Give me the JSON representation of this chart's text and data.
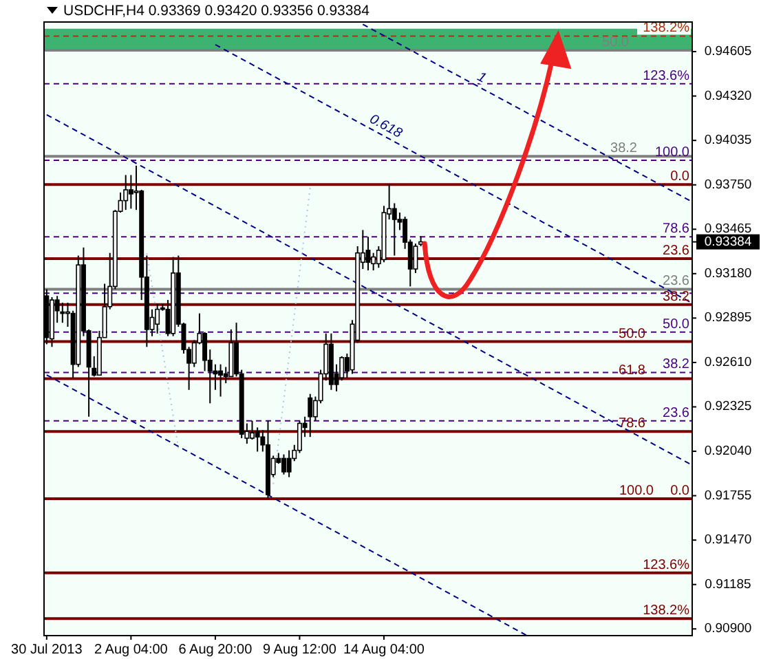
{
  "chart_data": {
    "type": "candlestick",
    "title": "USDCHF,H4  0.93369 0.93420 0.93356 0.93384",
    "categories": [
      "30 Jul 2013",
      null,
      null,
      null,
      null,
      null,
      null,
      null,
      null,
      null,
      null,
      null,
      null,
      null,
      null,
      null,
      "2 Aug 04:00",
      null,
      null,
      null,
      null,
      null,
      null,
      null,
      null,
      null,
      null,
      null,
      null,
      null,
      null,
      null,
      "6 Aug 20:00",
      null,
      null,
      null,
      null,
      null,
      null,
      null,
      null,
      null,
      null,
      null,
      null,
      null,
      null,
      null,
      "9 Aug 12:00",
      null,
      null,
      null,
      null,
      null,
      null,
      null,
      null,
      null,
      null,
      null,
      null,
      null,
      null,
      null,
      "14 Aug 04:00",
      null,
      null,
      null,
      null,
      null,
      null,
      null,
      null,
      null,
      null,
      null,
      null,
      null,
      null,
      null,
      null,
      null,
      null,
      null,
      null,
      null,
      null,
      null,
      null,
      null,
      null,
      null,
      null,
      null,
      null,
      null,
      null,
      null,
      null,
      null,
      null,
      null,
      null,
      null,
      null,
      null,
      null,
      null,
      null,
      null,
      null,
      null,
      null,
      null,
      null,
      null,
      null,
      null,
      null,
      null,
      null,
      null,
      null
    ],
    "ohlc": [
      [
        0.93037,
        0.9308,
        0.92727,
        0.9277
      ],
      [
        0.92762,
        0.93029,
        0.9271,
        0.93011
      ],
      [
        0.93011,
        0.93037,
        0.92865,
        0.92942
      ],
      [
        0.92934,
        0.92994,
        0.92865,
        0.92925
      ],
      [
        0.92925,
        0.92994,
        0.92839,
        0.92934
      ],
      [
        0.92925,
        0.92942,
        0.92512,
        0.92598
      ],
      [
        0.92598,
        0.93296,
        0.92581,
        0.93236
      ],
      [
        0.93236,
        0.93348,
        0.92779,
        0.92813
      ],
      [
        0.92813,
        0.92822,
        0.92262,
        0.92581
      ],
      [
        0.92572,
        0.9265,
        0.9252,
        0.92529
      ],
      [
        0.92529,
        0.92813,
        0.92529,
        0.9277
      ],
      [
        0.9277,
        0.93115,
        0.9277,
        0.92968
      ],
      [
        0.92968,
        0.93313,
        0.92951,
        0.93098
      ],
      [
        0.93098,
        0.93589,
        0.9308,
        0.9358
      ],
      [
        0.9358,
        0.93701,
        0.93572,
        0.93649
      ],
      [
        0.93649,
        0.93813,
        0.93589,
        0.93718
      ],
      [
        0.93718,
        0.93813,
        0.93597,
        0.93692
      ],
      [
        0.93701,
        0.93873,
        0.93589,
        0.9371
      ],
      [
        0.9371,
        0.93718,
        0.93011,
        0.93158
      ],
      [
        0.93158,
        0.93296,
        0.9271,
        0.92822
      ],
      [
        0.92822,
        0.92951,
        0.92779,
        0.92899
      ],
      [
        0.92856,
        0.92986,
        0.92796,
        0.92951
      ],
      [
        0.9296,
        0.92986,
        0.92942,
        0.92951
      ],
      [
        0.92951,
        0.93011,
        0.92779,
        0.92796
      ],
      [
        0.92796,
        0.93287,
        0.92779,
        0.93184
      ],
      [
        0.93184,
        0.93296,
        0.92839,
        0.92856
      ],
      [
        0.92856,
        0.92865,
        0.92667,
        0.92693
      ],
      [
        0.92693,
        0.9271,
        0.92434,
        0.92606
      ],
      [
        0.92606,
        0.92753,
        0.92581,
        0.92736
      ],
      [
        0.92736,
        0.92925,
        0.92727,
        0.92796
      ],
      [
        0.92796,
        0.92805,
        0.92555,
        0.92624
      ],
      [
        0.92624,
        0.92693,
        0.92348,
        0.92555
      ],
      [
        0.92555,
        0.92598,
        0.92434,
        0.92537
      ],
      [
        0.92555,
        0.92598,
        0.92391,
        0.92529
      ],
      [
        0.92537,
        0.92581,
        0.92477,
        0.9252
      ],
      [
        0.9252,
        0.92822,
        0.9252,
        0.92736
      ],
      [
        0.92736,
        0.92865,
        0.9252,
        0.92537
      ],
      [
        0.92537,
        0.92563,
        0.92124,
        0.9215
      ],
      [
        0.92124,
        0.92219,
        0.92089,
        0.92167
      ],
      [
        0.92124,
        0.92236,
        0.92115,
        0.92158
      ],
      [
        0.92167,
        0.92193,
        0.92038,
        0.92132
      ],
      [
        0.92132,
        0.92176,
        0.92038,
        0.92081
      ],
      [
        0.92081,
        0.92236,
        0.91736,
        0.91762
      ],
      [
        0.91891,
        0.92012,
        0.91874,
        0.91994
      ],
      [
        0.91994,
        0.92029,
        0.9196,
        0.91969
      ],
      [
        0.91994,
        0.9202,
        0.91891,
        0.91908
      ],
      [
        0.91994,
        0.92046,
        0.91874,
        0.91908
      ],
      [
        0.91994,
        0.92081,
        0.91977,
        0.92046
      ],
      [
        0.92046,
        0.92236,
        0.92029,
        0.92219
      ],
      [
        0.92219,
        0.92262,
        0.92132,
        0.92193
      ],
      [
        0.92382,
        0.92408,
        0.92132,
        0.92262
      ],
      [
        0.92262,
        0.92391,
        0.92236,
        0.92365
      ],
      [
        0.92365,
        0.92563,
        0.92348,
        0.92537
      ],
      [
        0.92537,
        0.92796,
        0.92494,
        0.92727
      ],
      [
        0.92727,
        0.92796,
        0.92434,
        0.92469
      ],
      [
        0.92537,
        0.92598,
        0.92425,
        0.92469
      ],
      [
        0.92512,
        0.9265,
        0.92494,
        0.92641
      ],
      [
        0.92641,
        0.92667,
        0.92512,
        0.92555
      ],
      [
        0.92563,
        0.92882,
        0.92537,
        0.92856
      ],
      [
        0.92753,
        0.93356,
        0.92736,
        0.93313
      ],
      [
        0.93253,
        0.9346,
        0.9321,
        0.93313
      ],
      [
        0.9333,
        0.93416,
        0.93201,
        0.93253
      ],
      [
        0.93244,
        0.93313,
        0.93201,
        0.93287
      ],
      [
        0.93244,
        0.93356,
        0.93218,
        0.9333
      ],
      [
        0.9327,
        0.93615,
        0.93253,
        0.93572
      ],
      [
        0.93563,
        0.93753,
        0.93528,
        0.93597
      ],
      [
        0.93597,
        0.93632,
        0.93296,
        0.93528
      ],
      [
        0.93528,
        0.93572,
        0.9346,
        0.93511
      ],
      [
        0.93528,
        0.93546,
        0.93339,
        0.93382
      ],
      [
        0.93382,
        0.93399,
        0.93098,
        0.9321
      ],
      [
        0.9321,
        0.93373,
        0.93184,
        0.93356
      ],
      [
        0.93369,
        0.9342,
        0.93356,
        0.93384
      ],
      null,
      null,
      null,
      null,
      null,
      null,
      null,
      null,
      null,
      null,
      null,
      null,
      null,
      null,
      null,
      null,
      null,
      null,
      null,
      null,
      null,
      null,
      null,
      null,
      null,
      null,
      null,
      null,
      null,
      null,
      null,
      null,
      null,
      null,
      null,
      null,
      null,
      null,
      null,
      null,
      null,
      null,
      null,
      null,
      null,
      null,
      null,
      null,
      null,
      null,
      null
    ],
    "ylim": [
      0.90857,
      0.94795
    ],
    "yticks": [
      0.94605,
      {
        "value": 0.9432,
        "label": "0.94320"
      },
      0.94035,
      {
        "value": 0.9375,
        "label": "0.93750"
      },
      0.93465,
      0.93384,
      {
        "value": 0.9318,
        "label": "0.93180"
      },
      0.92895,
      {
        "value": 0.9261,
        "label": "0.92610"
      },
      0.92325,
      {
        "value": 0.9204,
        "label": "0.92040"
      },
      0.91755,
      {
        "value": 0.9147,
        "label": "0.91470"
      },
      0.91185,
      {
        "value": 0.909,
        "label": "0.90900"
      }
    ],
    "series": [
      {
        "type": "line",
        "color": "#000080",
        "line_style": "dashed",
        "values": [
          0.942,
          null,
          null,
          null,
          null,
          null,
          null,
          null,
          null,
          null,
          null,
          null,
          null,
          null,
          null,
          null,
          null,
          null,
          null,
          null,
          null,
          null,
          null,
          null,
          null,
          null,
          null,
          null,
          null,
          null,
          null,
          null,
          null,
          null,
          null,
          null,
          null,
          null,
          null,
          null,
          null,
          null,
          null,
          null,
          null,
          null,
          null,
          null,
          null,
          null,
          null,
          null,
          null,
          null,
          null,
          null,
          null,
          null,
          null,
          null,
          null,
          null,
          null,
          null,
          null,
          null,
          null,
          null,
          null,
          null,
          null,
          null,
          null,
          null,
          null,
          null,
          null,
          null,
          null,
          null,
          null,
          null,
          null,
          null,
          null,
          null,
          null,
          null,
          null,
          null,
          null,
          null,
          null,
          null,
          null,
          null,
          null,
          null,
          null,
          null,
          null,
          null,
          null,
          null,
          null,
          null,
          null,
          null,
          null,
          null,
          null,
          null,
          null,
          null,
          null,
          null,
          null,
          null,
          null,
          null,
          null,
          null,
          0.9196
        ]
      },
      {
        "type": "line",
        "color": "#000080",
        "line_style": "dashed",
        "values": [
          0.9253,
          null,
          null,
          null,
          null,
          null,
          null,
          null,
          null,
          null,
          null,
          null,
          null,
          null,
          null,
          null,
          null,
          null,
          null,
          null,
          null,
          null,
          null,
          null,
          null,
          null,
          null,
          null,
          null,
          null,
          null,
          null,
          null,
          null,
          null,
          null,
          null,
          null,
          null,
          null,
          null,
          null,
          null,
          null,
          null,
          null,
          null,
          null,
          null,
          null,
          null,
          null,
          null,
          null,
          null,
          null,
          null,
          null,
          null,
          null,
          null,
          null,
          null,
          null,
          null,
          null,
          null,
          null,
          null,
          null,
          null,
          null,
          null,
          null,
          null,
          null,
          null,
          null,
          null,
          null,
          null,
          null,
          null,
          null,
          null,
          null,
          null,
          null,
          null,
          null,
          null,
          0.9086,
          null,
          null,
          null,
          null,
          null,
          null,
          null,
          null,
          null,
          null,
          null,
          null,
          null,
          null,
          null,
          null,
          null,
          null,
          null,
          null,
          null,
          null,
          null,
          null,
          null,
          null,
          null,
          null,
          null,
          null,
          null
        ]
      },
      {
        "type": "line",
        "name": "0.618",
        "color": "#000080",
        "line_style": "dashed",
        "values": [
          null,
          null,
          null,
          null,
          null,
          null,
          null,
          null,
          null,
          null,
          null,
          null,
          null,
          null,
          null,
          null,
          null,
          null,
          null,
          null,
          null,
          null,
          null,
          null,
          null,
          null,
          null,
          null,
          null,
          null,
          null,
          null,
          0.9465,
          null,
          null,
          null,
          null,
          null,
          null,
          null,
          null,
          null,
          null,
          null,
          null,
          null,
          null,
          null,
          null,
          null,
          null,
          null,
          null,
          null,
          null,
          null,
          null,
          null,
          null,
          null,
          null,
          null,
          null,
          null,
          null,
          null,
          null,
          null,
          null,
          null,
          null,
          null,
          null,
          null,
          null,
          null,
          null,
          null,
          null,
          null,
          null,
          null,
          null,
          null,
          null,
          null,
          null,
          null,
          null,
          null,
          null,
          null,
          null,
          null,
          null,
          null,
          null,
          null,
          null,
          null,
          null,
          null,
          null,
          null,
          null,
          null,
          null,
          null,
          null,
          null,
          null,
          null,
          null,
          null,
          null,
          null,
          null,
          null,
          null,
          null,
          null,
          null,
          0.93
        ]
      },
      {
        "type": "line",
        "name": "1",
        "color": "#000080",
        "line_style": "dashed",
        "values": [
          null,
          null,
          null,
          null,
          null,
          null,
          null,
          null,
          null,
          null,
          null,
          null,
          null,
          null,
          null,
          null,
          null,
          null,
          null,
          null,
          null,
          null,
          null,
          null,
          null,
          null,
          null,
          null,
          null,
          null,
          null,
          null,
          null,
          null,
          null,
          null,
          null,
          null,
          null,
          null,
          null,
          null,
          null,
          null,
          null,
          null,
          null,
          null,
          null,
          null,
          null,
          null,
          null,
          null,
          null,
          null,
          null,
          null,
          null,
          null,
          0.9478,
          null,
          null,
          null,
          null,
          null,
          null,
          null,
          null,
          null,
          null,
          null,
          null,
          null,
          null,
          null,
          null,
          null,
          null,
          null,
          null,
          null,
          null,
          null,
          null,
          null,
          null,
          null,
          null,
          null,
          null,
          null,
          null,
          null,
          null,
          null,
          null,
          null,
          null,
          null,
          null,
          null,
          null,
          null,
          null,
          null,
          null,
          null,
          null,
          null,
          null,
          null,
          null,
          null,
          null,
          null,
          null,
          null,
          null,
          null,
          null,
          null,
          0.9365
        ]
      },
      {
        "type": "line",
        "color": "#b0c4de",
        "line_style": "dotted",
        "values": [
          null,
          null,
          null,
          null,
          null,
          null,
          null,
          null,
          null,
          null,
          null,
          null,
          null,
          null,
          null,
          null,
          null,
          null,
          null,
          0.9331,
          null,
          null,
          null,
          null,
          null,
          0.9206,
          null,
          null,
          null,
          null,
          null,
          null,
          null,
          null,
          null,
          null,
          null,
          null,
          null,
          null,
          null,
          null,
          null,
          null,
          null,
          null,
          null,
          null,
          null,
          null,
          null,
          null,
          null,
          null,
          null,
          null,
          null,
          null,
          null,
          null,
          null,
          null,
          null,
          null,
          null,
          null,
          null,
          null,
          null,
          null,
          null,
          null,
          null,
          null,
          null,
          null,
          null,
          null,
          null,
          null,
          null,
          null,
          null,
          null,
          null,
          null,
          null,
          null,
          null,
          null,
          null,
          null,
          null,
          null,
          null,
          null,
          null,
          null,
          null,
          null,
          null,
          null,
          null,
          null,
          null,
          null,
          null,
          null,
          null,
          null,
          null,
          null,
          null,
          null,
          null,
          null,
          null,
          null,
          null,
          null,
          null,
          null,
          null
        ]
      },
      {
        "type": "line",
        "color": "#b0c4de",
        "line_style": "dotted",
        "values": [
          null,
          null,
          null,
          null,
          null,
          null,
          null,
          null,
          null,
          null,
          null,
          null,
          null,
          null,
          null,
          null,
          null,
          null,
          null,
          null,
          null,
          null,
          null,
          null,
          null,
          null,
          null,
          null,
          null,
          null,
          null,
          null,
          null,
          null,
          null,
          null,
          null,
          null,
          null,
          null,
          null,
          null,
          null,
          0.9183,
          null,
          null,
          null,
          null,
          null,
          null,
          0.9373,
          null,
          null,
          null,
          null,
          null,
          null,
          null,
          null,
          null,
          null,
          null,
          null,
          null,
          null,
          null,
          null,
          null,
          null,
          null,
          null,
          null,
          null,
          null,
          null,
          null,
          null,
          null,
          null,
          null,
          null,
          null,
          null,
          null,
          null,
          null,
          null,
          null,
          null,
          null,
          null,
          null,
          null,
          null,
          null,
          null,
          null,
          null,
          null,
          null,
          null,
          null,
          null,
          null,
          null,
          null,
          null,
          null,
          null,
          null,
          null,
          null,
          null,
          null,
          null,
          null,
          null,
          null,
          null,
          null,
          null,
          null,
          null
        ]
      }
    ],
    "bands": [
      {
        "axis": "y",
        "from": 0.94614,
        "to": 0.94752,
        "color": "#3cb371"
      }
    ],
    "ref_lines": [
      {
        "axis": "y",
        "value": 0.94705,
        "color": "#b03010",
        "line_style": "dashed"
      },
      {
        "axis": "y",
        "value": 0.94399,
        "color": "#4b0082",
        "line_style": "dashed"
      },
      {
        "axis": "y",
        "value": 0.93908,
        "color": "#4b0082",
        "line_style": "dashed"
      },
      {
        "axis": "y",
        "value": 0.93416,
        "color": "#4b0082",
        "line_style": "dashed"
      },
      {
        "axis": "y",
        "value": 0.93054,
        "color": "#4b0082",
        "line_style": "dashed"
      },
      {
        "axis": "y",
        "value": 0.92805,
        "color": "#4b0082",
        "line_style": "dashed"
      },
      {
        "axis": "y",
        "value": 0.92546,
        "color": "#4b0082",
        "line_style": "dashed"
      },
      {
        "axis": "y",
        "value": 0.92236,
        "color": "#4b0082",
        "line_style": "dashed"
      },
      {
        "axis": "y",
        "value": 0.94614,
        "color": "#808080",
        "line_style": "solid"
      },
      {
        "axis": "y",
        "value": 0.93933,
        "color": "#808080",
        "line_style": "solid"
      },
      {
        "axis": "y",
        "value": 0.9308,
        "color": "#808080",
        "line_style": "solid"
      },
      {
        "axis": "y",
        "value": 0.93752,
        "color": "#800000",
        "line_style": "solid"
      },
      {
        "axis": "y",
        "value": 0.93276,
        "color": "#800000",
        "line_style": "solid"
      },
      {
        "axis": "y",
        "value": 0.92982,
        "color": "#800000",
        "line_style": "solid"
      },
      {
        "axis": "y",
        "value": 0.92744,
        "color": "#800000",
        "line_style": "solid"
      },
      {
        "axis": "y",
        "value": 0.92506,
        "color": "#800000",
        "line_style": "solid"
      },
      {
        "axis": "y",
        "value": 0.92167,
        "color": "#800000",
        "line_style": "solid"
      },
      {
        "axis": "y",
        "value": 0.91736,
        "color": "#800000",
        "line_style": "solid"
      },
      {
        "axis": "y",
        "value": 0.9126,
        "color": "#800000",
        "line_style": "solid"
      },
      {
        "axis": "y",
        "value": 0.90966,
        "color": "#800000",
        "line_style": "solid"
      }
    ],
    "annotations": [
      {
        "text": "138.2%",
        "y": 0.94705
      },
      {
        "text": "123.6%",
        "y": 0.94399
      },
      {
        "text": "100.0",
        "y": 0.93908
      },
      {
        "text": "78.6",
        "y": 0.93416
      },
      {
        "text": "50.0",
        "y": 0.92805
      },
      {
        "text": "38.2",
        "y": 0.92546
      },
      {
        "text": "23.6",
        "y": 0.92236
      },
      {
        "text": "50.0",
        "y": 0.94614
      },
      {
        "text": "38.2",
        "y": 0.93933
      },
      {
        "text": "23.6",
        "y": 0.9308
      },
      {
        "text": "0.0",
        "y": 0.91736
      },
      {
        "text": "0.0",
        "y": 0.93752
      },
      {
        "text": "23.6",
        "y": 0.93276
      },
      {
        "text": "38.2",
        "y": 0.92982
      },
      {
        "text": "50.0",
        "y": 0.92744
      },
      {
        "text": "61.8",
        "y": 0.92506
      },
      {
        "text": "78.6",
        "y": 0.92167
      },
      {
        "text": "100.0",
        "y": 0.91736
      },
      {
        "text": "123.6%",
        "y": 0.9126
      },
      {
        "text": "138.2%",
        "y": 0.90966
      }
    ]
  }
}
